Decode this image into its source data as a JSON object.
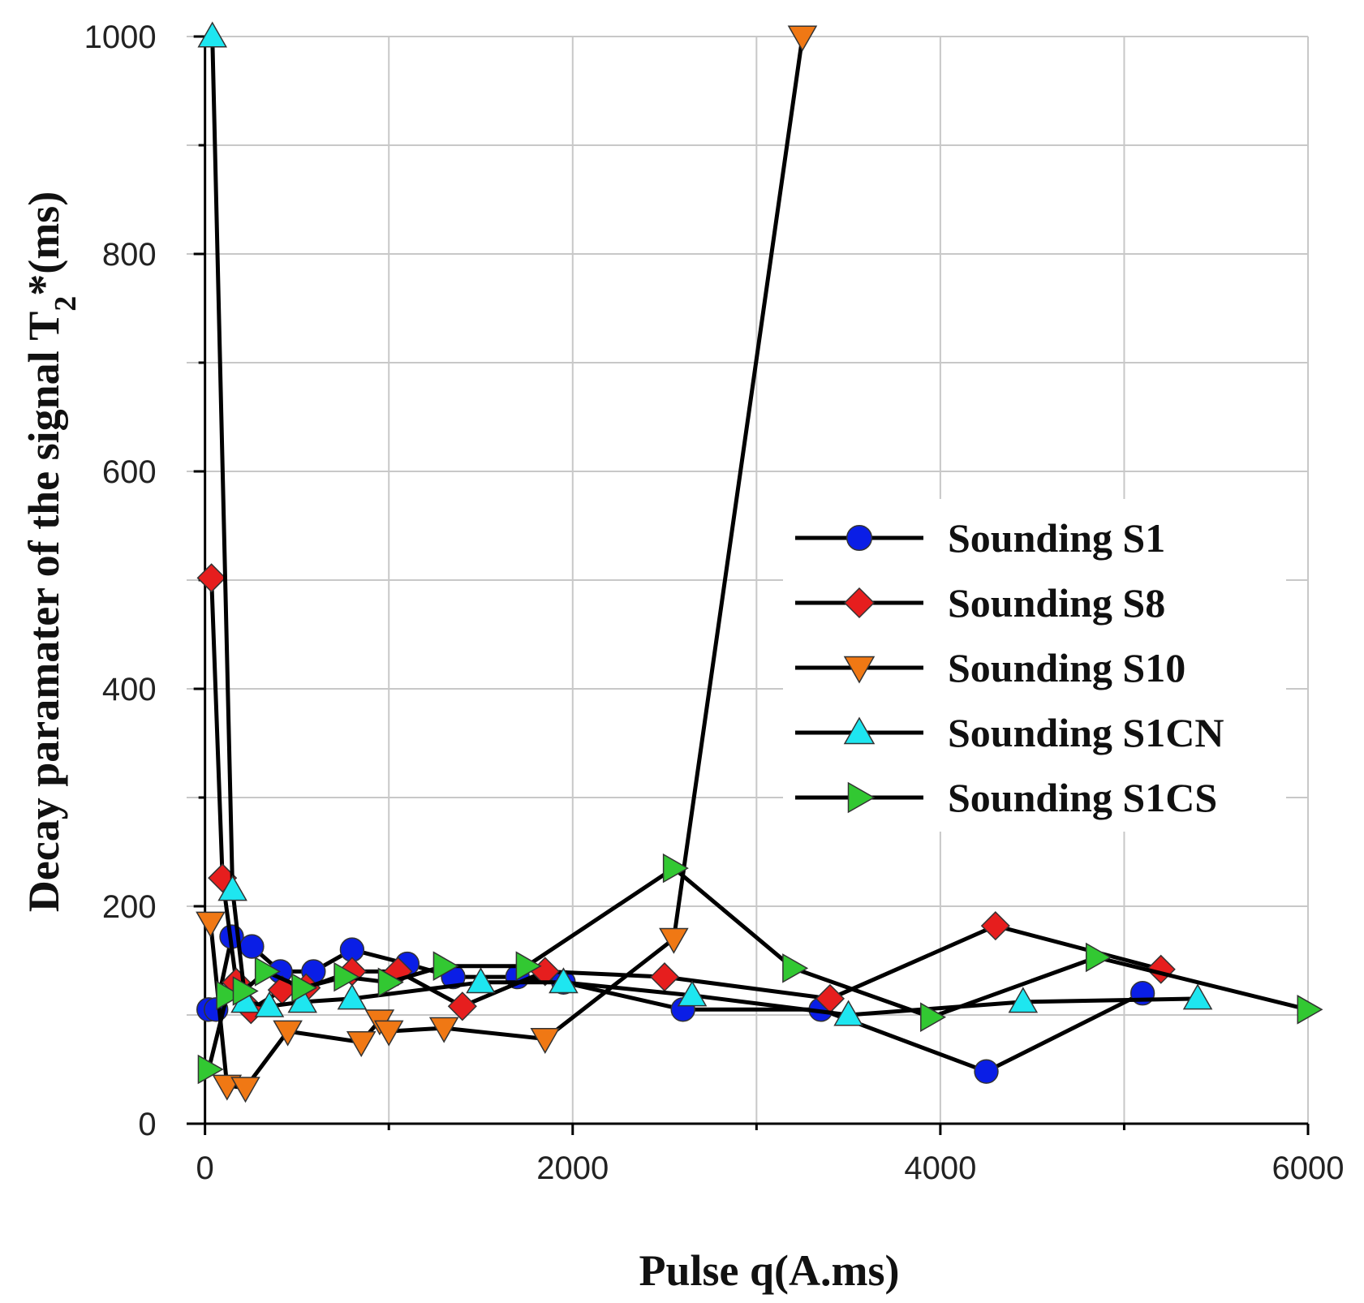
{
  "chart_data": {
    "type": "line",
    "title": "",
    "xlabel": "Pulse q(A.ms)",
    "ylabel_main": "Decay paramater of the signal T",
    "ylabel_sub": "2",
    "ylabel_tail": "*(ms)",
    "xlim": [
      -100,
      6000
    ],
    "ylim": [
      0,
      1000
    ],
    "x_ticks": [
      0,
      2000,
      4000,
      6000
    ],
    "x_minor_ticks": [
      1000,
      3000,
      5000
    ],
    "y_ticks": [
      0,
      200,
      400,
      600,
      800,
      1000
    ],
    "y_minor_ticks": [
      100,
      300,
      500,
      700,
      900
    ],
    "grid": true,
    "legend_position": "right",
    "series": [
      {
        "name": "Sounding S1",
        "marker": "circle",
        "color": "#0a1ee6",
        "points": [
          [
            20,
            105
          ],
          [
            60,
            105
          ],
          [
            145,
            172
          ],
          [
            255,
            163
          ],
          [
            410,
            140
          ],
          [
            590,
            140
          ],
          [
            800,
            160
          ],
          [
            1100,
            147
          ],
          [
            1350,
            135
          ],
          [
            1700,
            135
          ],
          [
            1950,
            130
          ],
          [
            2600,
            105
          ],
          [
            3350,
            105
          ],
          [
            4250,
            48
          ],
          [
            5100,
            120
          ]
        ]
      },
      {
        "name": "Sounding S8",
        "marker": "diamond",
        "color": "#e61e1e",
        "points": [
          [
            35,
            502
          ],
          [
            95,
            226
          ],
          [
            170,
            130
          ],
          [
            250,
            105
          ],
          [
            420,
            123
          ],
          [
            550,
            125
          ],
          [
            800,
            140
          ],
          [
            1050,
            140
          ],
          [
            1400,
            108
          ],
          [
            1850,
            140
          ],
          [
            2500,
            135
          ],
          [
            3400,
            115
          ],
          [
            4300,
            182
          ],
          [
            5200,
            142
          ]
        ]
      },
      {
        "name": "Sounding S10",
        "marker": "triangle-down",
        "color": "#f07814",
        "points": [
          [
            30,
            185
          ],
          [
            120,
            35
          ],
          [
            220,
            33
          ],
          [
            450,
            85
          ],
          [
            850,
            75
          ],
          [
            950,
            95
          ],
          [
            1000,
            85
          ],
          [
            1300,
            88
          ],
          [
            1850,
            78
          ],
          [
            2550,
            170
          ],
          [
            3250,
            1000
          ]
        ]
      },
      {
        "name": "Sounding S1CN",
        "marker": "triangle-up",
        "color": "#1ee6f0",
        "points": [
          [
            40,
            1000
          ],
          [
            150,
            215
          ],
          [
            220,
            112
          ],
          [
            350,
            108
          ],
          [
            530,
            112
          ],
          [
            800,
            115
          ],
          [
            1500,
            130
          ],
          [
            1950,
            130
          ],
          [
            2650,
            118
          ],
          [
            3500,
            100
          ],
          [
            4450,
            112
          ],
          [
            5400,
            115
          ]
        ]
      },
      {
        "name": "Sounding S1CS",
        "marker": "triangle-right",
        "color": "#32c832",
        "points": [
          [
            20,
            50
          ],
          [
            120,
            118
          ],
          [
            210,
            122
          ],
          [
            330,
            140
          ],
          [
            530,
            125
          ],
          [
            760,
            135
          ],
          [
            1000,
            130
          ],
          [
            1300,
            145
          ],
          [
            1750,
            145
          ],
          [
            2550,
            235
          ],
          [
            3200,
            143
          ],
          [
            3950,
            98
          ],
          [
            4850,
            153
          ],
          [
            6000,
            105
          ]
        ]
      }
    ]
  }
}
